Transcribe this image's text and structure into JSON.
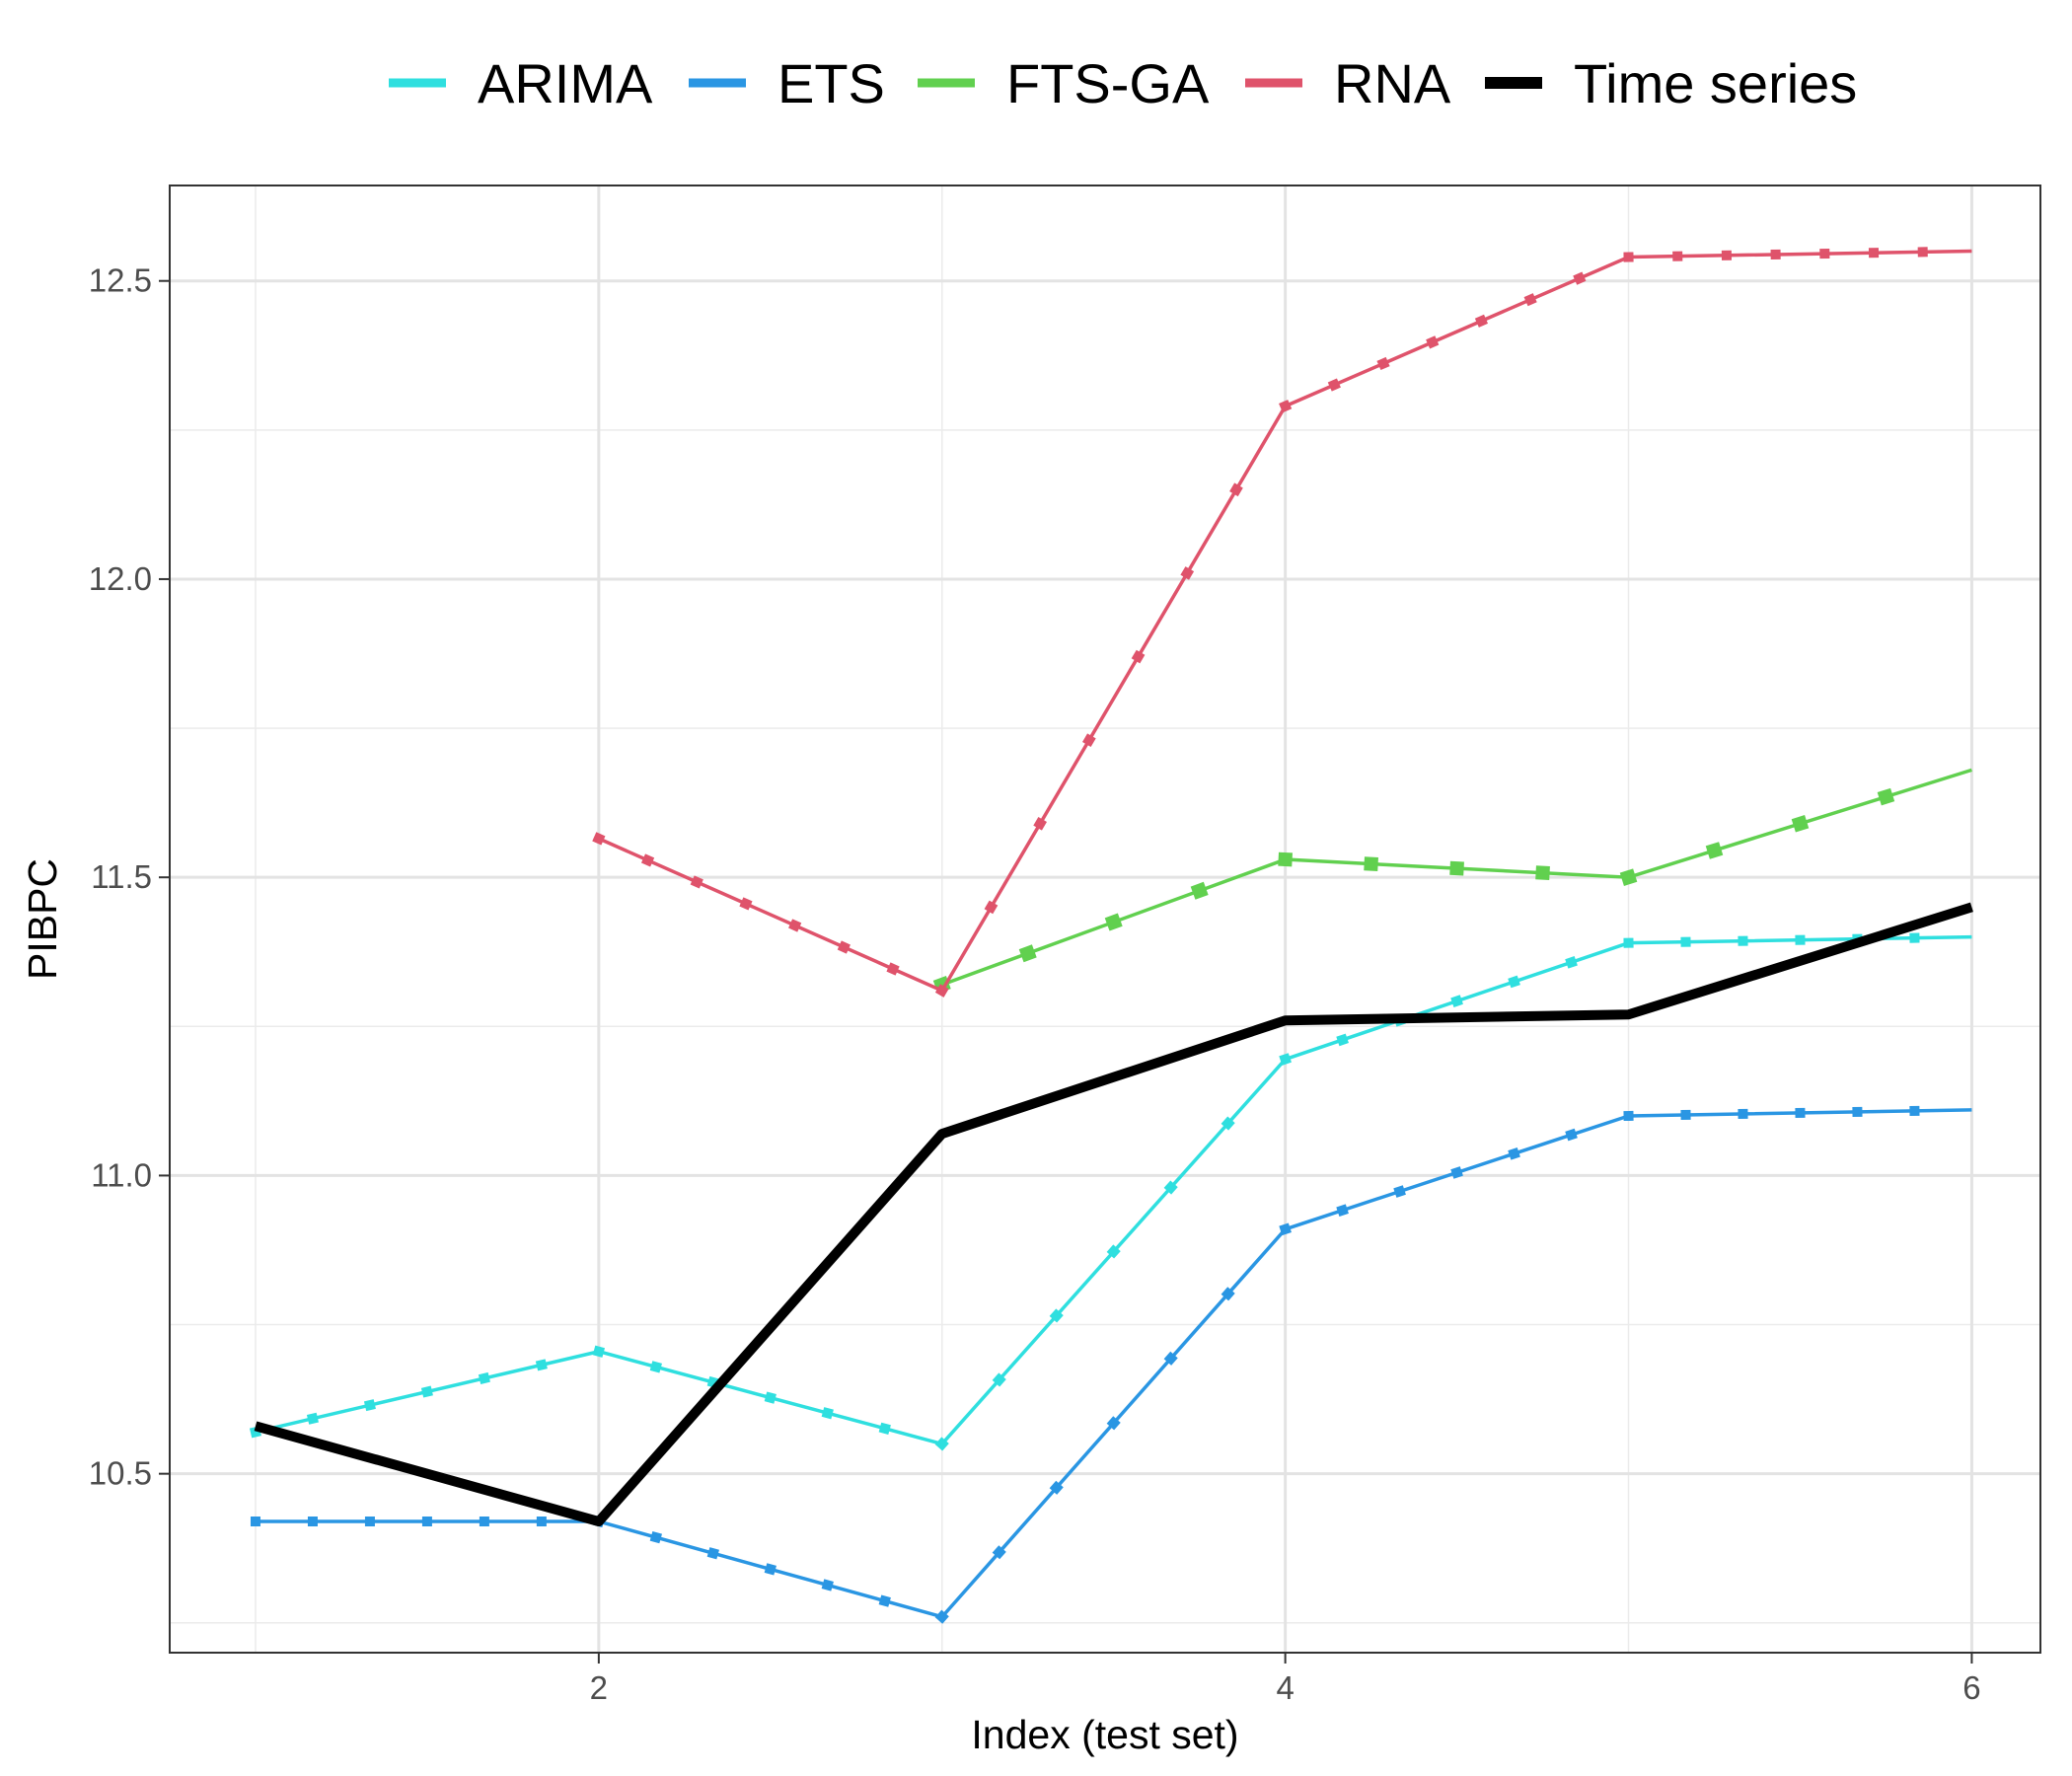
{
  "chart_data": {
    "type": "line",
    "xlabel": "Index (test set)",
    "ylabel": "PIBPC",
    "xlim": [
      0.75,
      6.2
    ],
    "ylim": [
      10.2,
      12.66
    ],
    "x_ticks": [
      2,
      4,
      6
    ],
    "x_tick_labels": [
      "2",
      "4",
      "6"
    ],
    "y_ticks": [
      10.5,
      11.0,
      11.5,
      12.0,
      12.5
    ],
    "y_tick_labels": [
      "10.5",
      "11.0",
      "11.5",
      "12.0",
      "12.5"
    ],
    "grid": true,
    "legend_position": "top",
    "series": [
      {
        "name": "ARIMA",
        "color": "#2fdfdf",
        "marker_spacing": 0.167,
        "points": [
          [
            1,
            10.57
          ],
          [
            2,
            10.705
          ],
          [
            3,
            10.55
          ],
          [
            4,
            11.195
          ],
          [
            5,
            11.39
          ],
          [
            6,
            11.4
          ]
        ]
      },
      {
        "name": "ETS",
        "color": "#2a96e3",
        "marker_spacing": 0.167,
        "points": [
          [
            1,
            10.42
          ],
          [
            2,
            10.42
          ],
          [
            3,
            10.26
          ],
          [
            4,
            10.91
          ],
          [
            5,
            11.1
          ],
          [
            6,
            11.11
          ]
        ]
      },
      {
        "name": "FTS-GA",
        "color": "#61d04f",
        "marker_spacing": 0.25,
        "points": [
          [
            3,
            11.32
          ],
          [
            4,
            11.53
          ],
          [
            5,
            11.5
          ],
          [
            6,
            11.68
          ]
        ]
      },
      {
        "name": "RNA",
        "color": "#df536b",
        "marker_spacing": 0.143,
        "points": [
          [
            2,
            11.565
          ],
          [
            3,
            11.31
          ],
          [
            4,
            12.29
          ],
          [
            5,
            12.54
          ],
          [
            6,
            12.55
          ]
        ]
      },
      {
        "name": "Time series",
        "color": "#000000",
        "points": [
          [
            1,
            10.58
          ],
          [
            2,
            10.42
          ],
          [
            3,
            11.07
          ],
          [
            4,
            11.26
          ],
          [
            5,
            11.27
          ],
          [
            6,
            11.45
          ]
        ]
      }
    ]
  }
}
